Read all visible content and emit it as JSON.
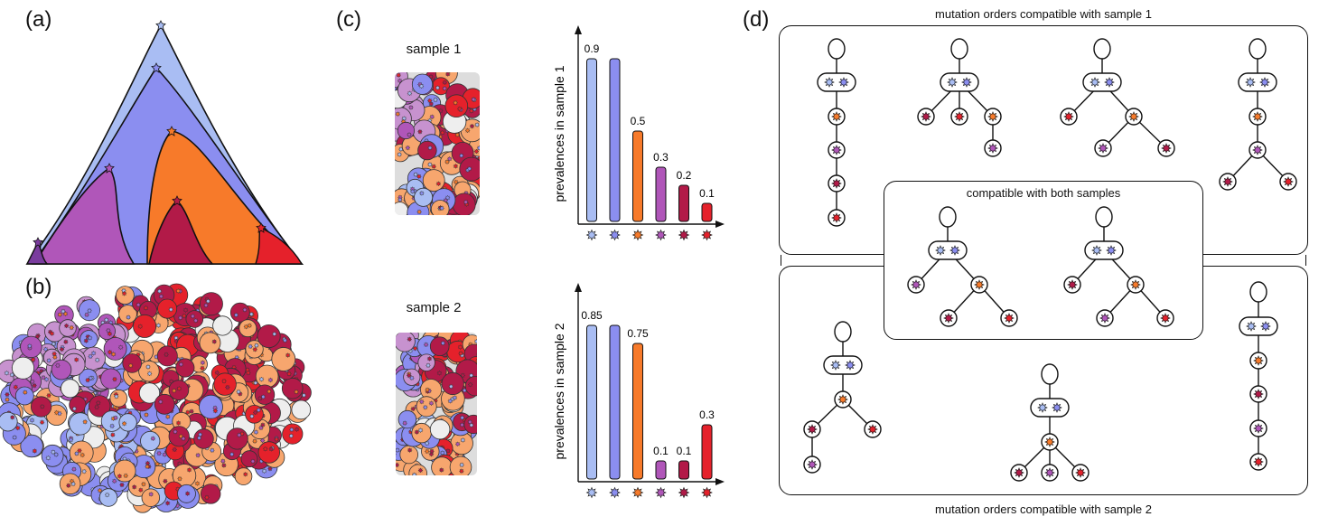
{
  "panels": {
    "a": "(a)",
    "b": "(b)",
    "c": "(c)",
    "d": "(d)"
  },
  "samples": {
    "sample1_title": "sample 1",
    "sample2_title": "sample 2"
  },
  "colors": {
    "m1": "#a9bdf3",
    "m2": "#8b8ef0",
    "m3": "#f77a2a",
    "m4": "#b056b9",
    "m5": "#b21a48",
    "m6": "#e5212b",
    "light_orange": "#f7a66e",
    "light_purple": "#c792cf",
    "gray": "#eeeeee"
  },
  "chart_data": [
    {
      "type": "bar",
      "ylabel": "prevalences in sample 1",
      "categories": [
        "m1",
        "m2",
        "m3",
        "m4",
        "m5",
        "m6"
      ],
      "values": [
        0.9,
        0.9,
        0.5,
        0.3,
        0.2,
        0.1
      ],
      "data_labels": [
        "0.9",
        "",
        "0.5",
        "0.3",
        "0.2",
        "0.1"
      ],
      "ylim": [
        0,
        1
      ]
    },
    {
      "type": "bar",
      "ylabel": "prevalences in sample 2",
      "categories": [
        "m1",
        "m2",
        "m3",
        "m4",
        "m5",
        "m6"
      ],
      "values": [
        0.85,
        0.85,
        0.75,
        0.1,
        0.1,
        0.3
      ],
      "data_labels": [
        "0.85",
        "",
        "0.75",
        "0.1",
        "0.1",
        "0.3"
      ],
      "ylim": [
        0,
        1
      ]
    }
  ],
  "trees_panel": {
    "top_caption": "mutation orders compatible with sample 1",
    "middle_caption": "compatible with both samples",
    "bottom_caption": "mutation orders compatible with sample 2"
  }
}
